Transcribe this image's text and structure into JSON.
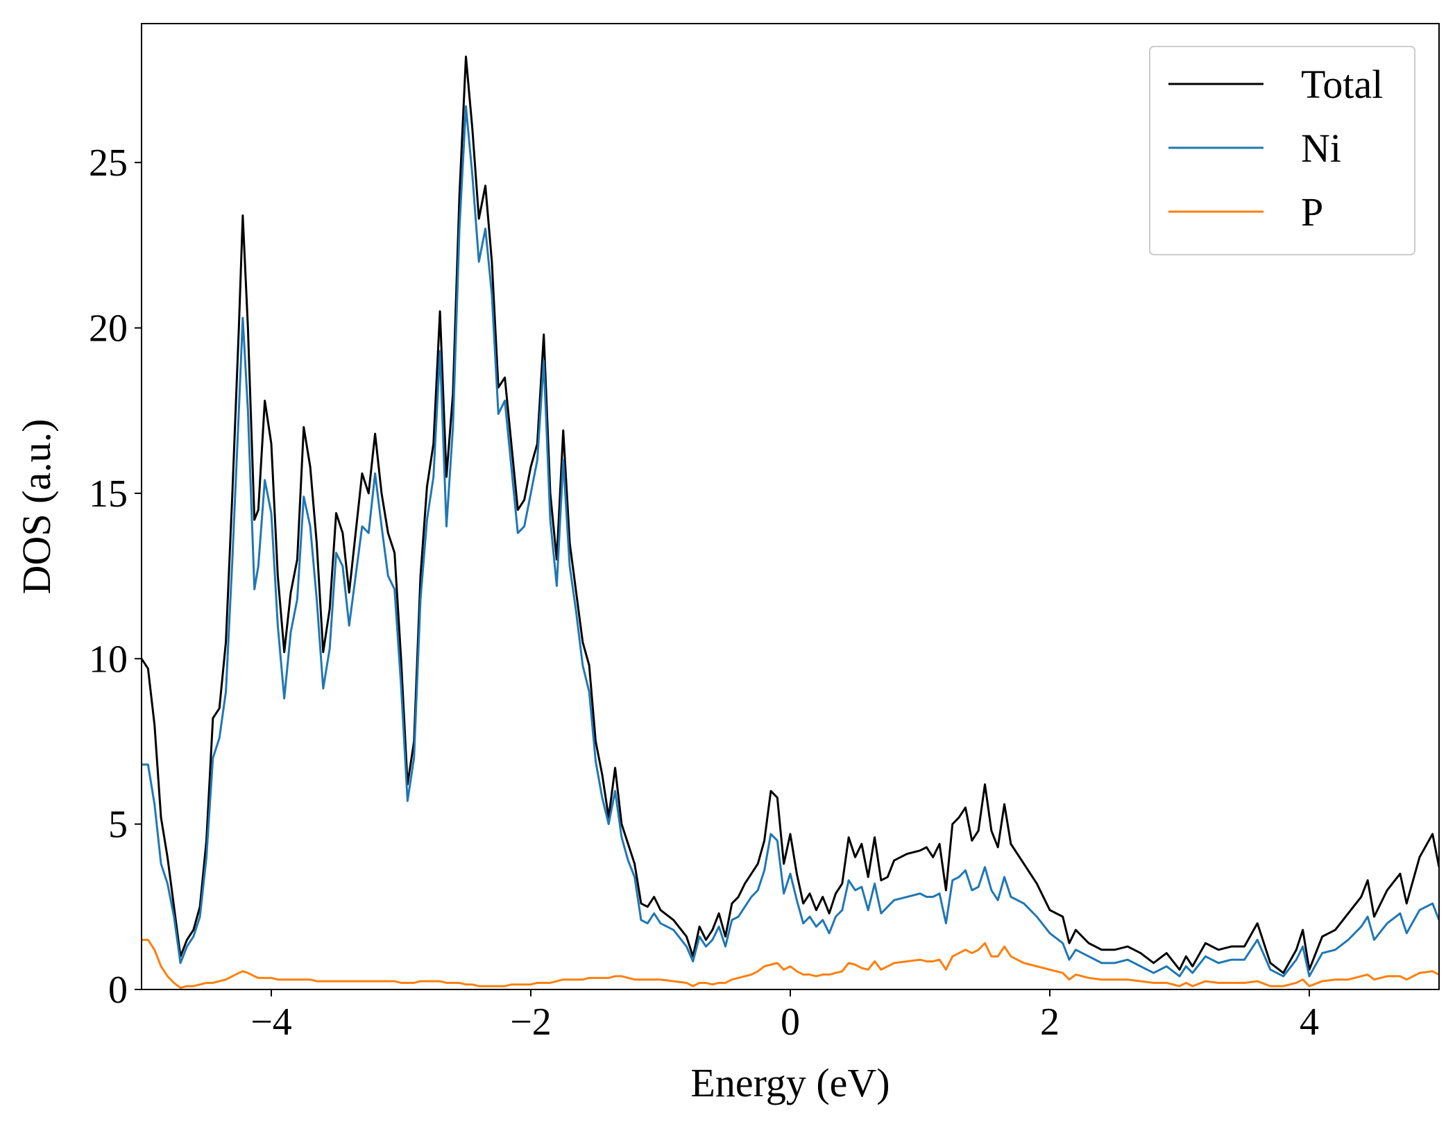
{
  "chart_data": {
    "type": "line",
    "xlabel": "Energy (eV)",
    "ylabel": "DOS (a.u.)",
    "xlim": [
      -5,
      5
    ],
    "ylim": [
      0,
      29.2
    ],
    "xticks": [
      {
        "value": -4,
        "label": "−4"
      },
      {
        "value": -2,
        "label": "−2"
      },
      0,
      2,
      4
    ],
    "yticks": [
      0,
      5,
      10,
      15,
      20,
      25
    ],
    "grid": false,
    "legend": "upper right",
    "x": [
      -5.0,
      -4.95,
      -4.9,
      -4.85,
      -4.8,
      -4.75,
      -4.7,
      -4.65,
      -4.6,
      -4.55,
      -4.5,
      -4.45,
      -4.4,
      -4.35,
      -4.3,
      -4.25,
      -4.22,
      -4.18,
      -4.13,
      -4.1,
      -4.05,
      -4.0,
      -3.95,
      -3.9,
      -3.85,
      -3.8,
      -3.75,
      -3.7,
      -3.65,
      -3.6,
      -3.55,
      -3.5,
      -3.45,
      -3.4,
      -3.35,
      -3.3,
      -3.25,
      -3.2,
      -3.15,
      -3.1,
      -3.05,
      -3.0,
      -2.95,
      -2.9,
      -2.85,
      -2.8,
      -2.75,
      -2.7,
      -2.65,
      -2.6,
      -2.55,
      -2.5,
      -2.45,
      -2.4,
      -2.35,
      -2.3,
      -2.25,
      -2.2,
      -2.15,
      -2.1,
      -2.05,
      -2.0,
      -1.95,
      -1.9,
      -1.85,
      -1.8,
      -1.75,
      -1.7,
      -1.65,
      -1.6,
      -1.55,
      -1.5,
      -1.45,
      -1.4,
      -1.35,
      -1.3,
      -1.25,
      -1.2,
      -1.15,
      -1.1,
      -1.05,
      -1.0,
      -0.9,
      -0.8,
      -0.75,
      -0.7,
      -0.65,
      -0.6,
      -0.55,
      -0.5,
      -0.45,
      -0.4,
      -0.35,
      -0.3,
      -0.25,
      -0.2,
      -0.15,
      -0.1,
      -0.05,
      0.0,
      0.05,
      0.1,
      0.15,
      0.2,
      0.25,
      0.3,
      0.35,
      0.4,
      0.45,
      0.5,
      0.55,
      0.6,
      0.65,
      0.7,
      0.75,
      0.8,
      0.9,
      1.0,
      1.05,
      1.1,
      1.15,
      1.2,
      1.25,
      1.3,
      1.35,
      1.4,
      1.45,
      1.5,
      1.55,
      1.6,
      1.65,
      1.7,
      1.8,
      1.9,
      2.0,
      2.1,
      2.15,
      2.2,
      2.3,
      2.4,
      2.5,
      2.6,
      2.7,
      2.8,
      2.9,
      3.0,
      3.05,
      3.1,
      3.2,
      3.3,
      3.4,
      3.5,
      3.6,
      3.7,
      3.8,
      3.9,
      3.95,
      4.0,
      4.1,
      4.2,
      4.3,
      4.4,
      4.45,
      4.5,
      4.6,
      4.7,
      4.75,
      4.85,
      4.95,
      5.0
    ],
    "series": [
      {
        "name": "Total",
        "color": "#000000",
        "values": [
          10.0,
          9.7,
          8.0,
          5.2,
          4.0,
          2.5,
          1.0,
          1.5,
          1.8,
          2.5,
          4.5,
          8.2,
          8.5,
          10.5,
          15,
          20,
          23.4,
          20,
          14.2,
          14.5,
          17.8,
          16.5,
          12.5,
          10.2,
          12.0,
          13,
          17,
          15.8,
          13.5,
          10.2,
          11.5,
          14.4,
          13.8,
          12,
          13.8,
          15.6,
          15.0,
          16.8,
          15,
          13.8,
          13.2,
          10,
          6.2,
          7.5,
          12.5,
          15.2,
          16.5,
          20.5,
          15.5,
          18,
          24,
          28.2,
          26,
          23.3,
          24.3,
          22,
          18.2,
          18.5,
          16.5,
          14.5,
          14.8,
          15.8,
          16.5,
          19.8,
          15,
          13,
          16.9,
          13.5,
          12,
          10.5,
          9.8,
          7.5,
          6.5,
          5.2,
          6.7,
          5,
          4.4,
          3.8,
          2.6,
          2.5,
          2.8,
          2.4,
          2.1,
          1.6,
          1.0,
          1.9,
          1.5,
          1.8,
          2.3,
          1.6,
          2.6,
          2.8,
          3.2,
          3.5,
          3.8,
          4.5,
          6.0,
          5.8,
          3.8,
          4.7,
          3.5,
          2.6,
          2.9,
          2.4,
          2.8,
          2.3,
          2.9,
          3.2,
          4.6,
          4.0,
          4.4,
          3.4,
          4.6,
          3.3,
          3.4,
          3.9,
          4.1,
          4.2,
          4.3,
          4.0,
          4.4,
          3.0,
          5.0,
          5.2,
          5.5,
          4.5,
          4.8,
          6.2,
          4.8,
          4.3,
          5.6,
          4.4,
          3.8,
          3.2,
          2.4,
          2.2,
          1.4,
          1.8,
          1.4,
          1.2,
          1.2,
          1.3,
          1.1,
          0.8,
          1.1,
          0.6,
          1.0,
          0.7,
          1.4,
          1.2,
          1.3,
          1.3,
          2.0,
          0.8,
          0.5,
          1.2,
          1.8,
          0.6,
          1.6,
          1.8,
          2.3,
          2.8,
          3.3,
          2.2,
          3.0,
          3.5,
          2.6,
          4.0,
          4.7,
          3.7
        ]
      },
      {
        "name": "Ni",
        "color": "#1f77b4",
        "values": [
          6.8,
          6.8,
          5.6,
          3.8,
          3.2,
          2.2,
          0.8,
          1.3,
          1.6,
          2.2,
          4.0,
          7.0,
          7.6,
          9.0,
          13,
          17.5,
          20.3,
          17.5,
          12.1,
          12.8,
          15.4,
          14.4,
          11.0,
          8.8,
          10.8,
          11.8,
          14.9,
          14.0,
          11.8,
          9.1,
          10.3,
          13.2,
          12.8,
          11.0,
          12.5,
          14.0,
          13.8,
          15.6,
          14.0,
          12.5,
          12.1,
          9.2,
          5.7,
          7.0,
          11.8,
          14.2,
          15.5,
          19.3,
          14.0,
          17,
          23,
          26.7,
          24.6,
          22,
          23,
          21,
          17.4,
          17.8,
          15.8,
          13.8,
          14.0,
          15.0,
          16.0,
          19.0,
          14.2,
          12.2,
          16.0,
          12.8,
          11.4,
          9.8,
          9.0,
          6.9,
          5.8,
          5.0,
          6.0,
          4.6,
          3.9,
          3.4,
          2.1,
          2.0,
          2.3,
          2.0,
          1.8,
          1.3,
          0.85,
          1.6,
          1.3,
          1.5,
          1.9,
          1.3,
          2.1,
          2.2,
          2.5,
          2.8,
          3.0,
          3.6,
          4.7,
          4.5,
          2.9,
          3.5,
          2.7,
          2.0,
          2.2,
          1.9,
          2.1,
          1.7,
          2.2,
          2.4,
          3.3,
          3.0,
          3.1,
          2.4,
          3.2,
          2.3,
          2.5,
          2.7,
          2.8,
          2.9,
          2.8,
          2.8,
          2.9,
          2.0,
          3.3,
          3.4,
          3.6,
          3.0,
          3.1,
          3.7,
          3.0,
          2.7,
          3.4,
          2.8,
          2.6,
          2.2,
          1.7,
          1.4,
          0.9,
          1.2,
          1.0,
          0.8,
          0.8,
          0.9,
          0.7,
          0.5,
          0.7,
          0.4,
          0.7,
          0.5,
          1.0,
          0.8,
          0.9,
          0.9,
          1.5,
          0.6,
          0.4,
          0.9,
          1.3,
          0.4,
          1.1,
          1.2,
          1.5,
          1.9,
          2.2,
          1.5,
          2.0,
          2.3,
          1.7,
          2.4,
          2.6,
          2.1
        ]
      },
      {
        "name": "P",
        "color": "#ff7f0e",
        "values": [
          1.5,
          1.5,
          1.2,
          0.7,
          0.4,
          0.2,
          0.05,
          0.1,
          0.1,
          0.15,
          0.2,
          0.2,
          0.25,
          0.3,
          0.4,
          0.5,
          0.55,
          0.5,
          0.4,
          0.35,
          0.35,
          0.35,
          0.3,
          0.3,
          0.3,
          0.3,
          0.3,
          0.3,
          0.25,
          0.25,
          0.25,
          0.25,
          0.25,
          0.25,
          0.25,
          0.25,
          0.25,
          0.25,
          0.25,
          0.25,
          0.25,
          0.2,
          0.2,
          0.2,
          0.25,
          0.25,
          0.25,
          0.25,
          0.2,
          0.2,
          0.2,
          0.15,
          0.15,
          0.1,
          0.1,
          0.1,
          0.1,
          0.1,
          0.15,
          0.15,
          0.15,
          0.15,
          0.2,
          0.2,
          0.2,
          0.25,
          0.3,
          0.3,
          0.3,
          0.3,
          0.35,
          0.35,
          0.35,
          0.35,
          0.4,
          0.4,
          0.35,
          0.3,
          0.3,
          0.3,
          0.3,
          0.3,
          0.25,
          0.2,
          0.1,
          0.2,
          0.2,
          0.15,
          0.2,
          0.2,
          0.3,
          0.35,
          0.4,
          0.45,
          0.55,
          0.7,
          0.75,
          0.8,
          0.6,
          0.7,
          0.55,
          0.45,
          0.45,
          0.4,
          0.45,
          0.45,
          0.5,
          0.55,
          0.8,
          0.75,
          0.65,
          0.6,
          0.85,
          0.6,
          0.7,
          0.8,
          0.85,
          0.9,
          0.85,
          0.85,
          0.9,
          0.6,
          1.0,
          1.1,
          1.2,
          1.1,
          1.2,
          1.4,
          1.0,
          1.0,
          1.3,
          1.0,
          0.8,
          0.7,
          0.6,
          0.5,
          0.3,
          0.45,
          0.35,
          0.3,
          0.3,
          0.3,
          0.25,
          0.2,
          0.2,
          0.1,
          0.2,
          0.1,
          0.25,
          0.2,
          0.2,
          0.2,
          0.25,
          0.1,
          0.1,
          0.2,
          0.3,
          0.1,
          0.25,
          0.3,
          0.3,
          0.4,
          0.45,
          0.3,
          0.4,
          0.4,
          0.3,
          0.5,
          0.55,
          0.45
        ]
      }
    ]
  }
}
